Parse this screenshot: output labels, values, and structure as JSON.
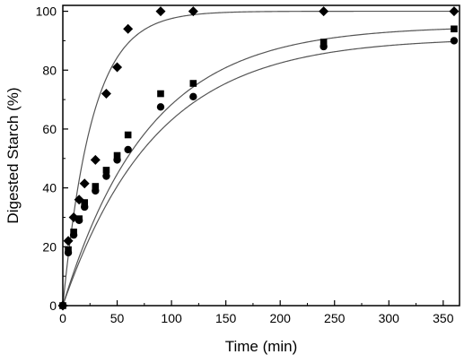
{
  "chart_data": {
    "type": "scatter",
    "title": "",
    "xlabel": "Time (min)",
    "ylabel": "Digested Starch (%)",
    "xlim": [
      0,
      365
    ],
    "ylim": [
      0,
      102
    ],
    "xticks": [
      0,
      50,
      100,
      150,
      200,
      250,
      300,
      350
    ],
    "yticks": [
      0,
      20,
      40,
      60,
      80,
      100
    ],
    "grid": false,
    "legend": "none",
    "series": [
      {
        "marker": "diamond",
        "x": [
          0,
          5,
          10,
          15,
          20,
          30,
          40,
          50,
          60,
          90,
          120,
          240,
          360
        ],
        "y": [
          0,
          22,
          30,
          36,
          41.5,
          49.5,
          72,
          81,
          94,
          100,
          100,
          100,
          100
        ],
        "fit": {
          "c": 100,
          "k": 0.037
        }
      },
      {
        "marker": "square",
        "x": [
          0,
          5,
          10,
          15,
          20,
          30,
          40,
          50,
          60,
          90,
          120,
          240,
          360
        ],
        "y": [
          0,
          19,
          25,
          29.5,
          35,
          40.5,
          46,
          51,
          58,
          72,
          75.5,
          89.5,
          94
        ],
        "fit": {
          "c": 95,
          "k": 0.0127
        }
      },
      {
        "marker": "circle",
        "x": [
          0,
          5,
          10,
          15,
          20,
          30,
          40,
          50,
          60,
          90,
          120,
          240,
          360
        ],
        "y": [
          0,
          18,
          24,
          29,
          33.5,
          39,
          44,
          49.5,
          53,
          67.5,
          71,
          88,
          90
        ],
        "fit": {
          "c": 91,
          "k": 0.0118
        }
      }
    ],
    "colors": {
      "marker": "#000000",
      "fit_line": "#555555",
      "axis": "#000000"
    }
  }
}
